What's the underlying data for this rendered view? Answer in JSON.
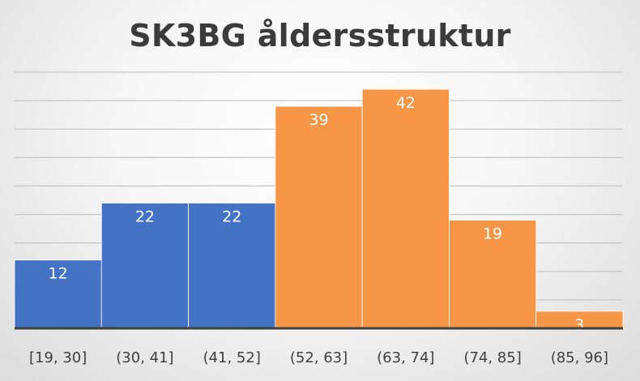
{
  "chart_data": {
    "type": "bar",
    "title": "SK3BG åldersstruktur",
    "categories": [
      "[19, 30]",
      "(30, 41]",
      "(41, 52]",
      "(52, 63]",
      "(63, 74]",
      "(74, 85]",
      "(85, 96]"
    ],
    "values": [
      12,
      22,
      22,
      39,
      42,
      19,
      3
    ],
    "groups": [
      "blue",
      "blue",
      "blue",
      "orange",
      "orange",
      "orange",
      "orange"
    ],
    "colors": {
      "blue": "#4472c4",
      "orange": "#f79646"
    },
    "xlabel": "",
    "ylabel": "",
    "ylim": [
      0,
      45
    ],
    "grid_step": 5,
    "grid": true,
    "legend": "none"
  }
}
